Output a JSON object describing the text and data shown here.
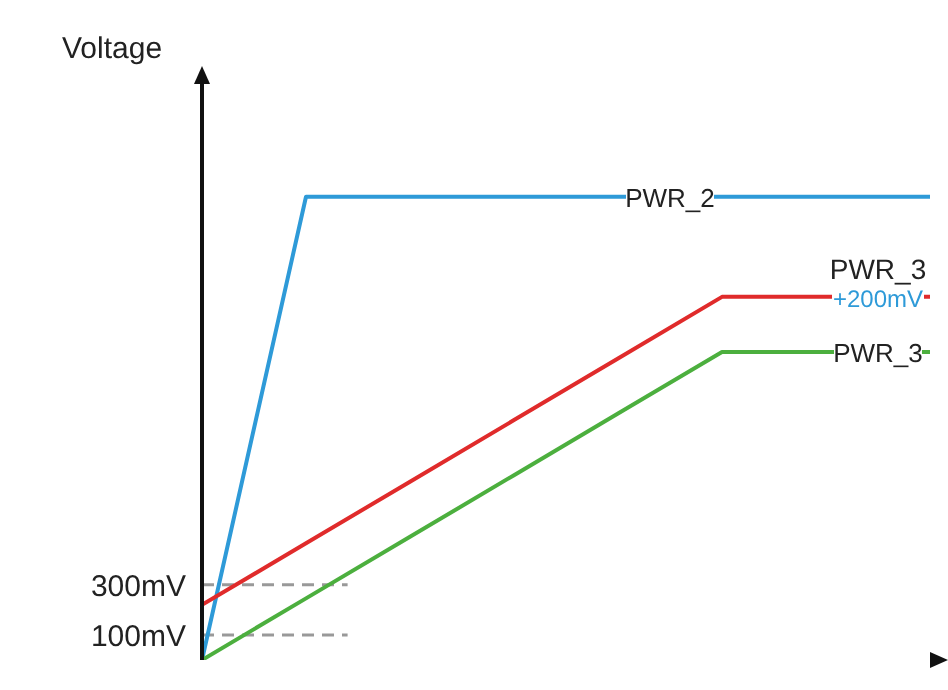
{
  "chart_data": {
    "type": "line",
    "ylabel": "Voltage",
    "categories": [
      null,
      null,
      null,
      null,
      null,
      null,
      null,
      null
    ],
    "series": [
      {
        "name": "PWR_2",
        "color": "#2e9ad8",
        "values": [
          0,
          1850,
          1850,
          1850,
          1850,
          1850,
          1850,
          1850
        ]
      },
      {
        "name": "PWR_3",
        "color": "#e02b2b",
        "values": [
          220,
          466,
          712,
          958,
          1204,
          1450,
          1450,
          1450
        ]
      },
      {
        "name": "PWR_3",
        "color": "#4caf3e",
        "values": [
          0,
          246,
          492,
          738,
          984,
          1230,
          1230,
          1230
        ]
      }
    ],
    "annotations": [
      "+200mV"
    ],
    "ylim": [
      0,
      2300
    ],
    "yticks": [
      {
        "value": 100,
        "label": "100mV"
      },
      {
        "value": 300,
        "label": "300mV"
      }
    ],
    "ref_lines": [
      {
        "axis": "y",
        "value": 300,
        "color": "#999999",
        "line_style": "dashed"
      },
      {
        "axis": "y",
        "value": 100,
        "color": "#999999",
        "line_style": "dashed"
      }
    ],
    "tick_labels": "y",
    "marker": "none",
    "line_style": "solid"
  }
}
